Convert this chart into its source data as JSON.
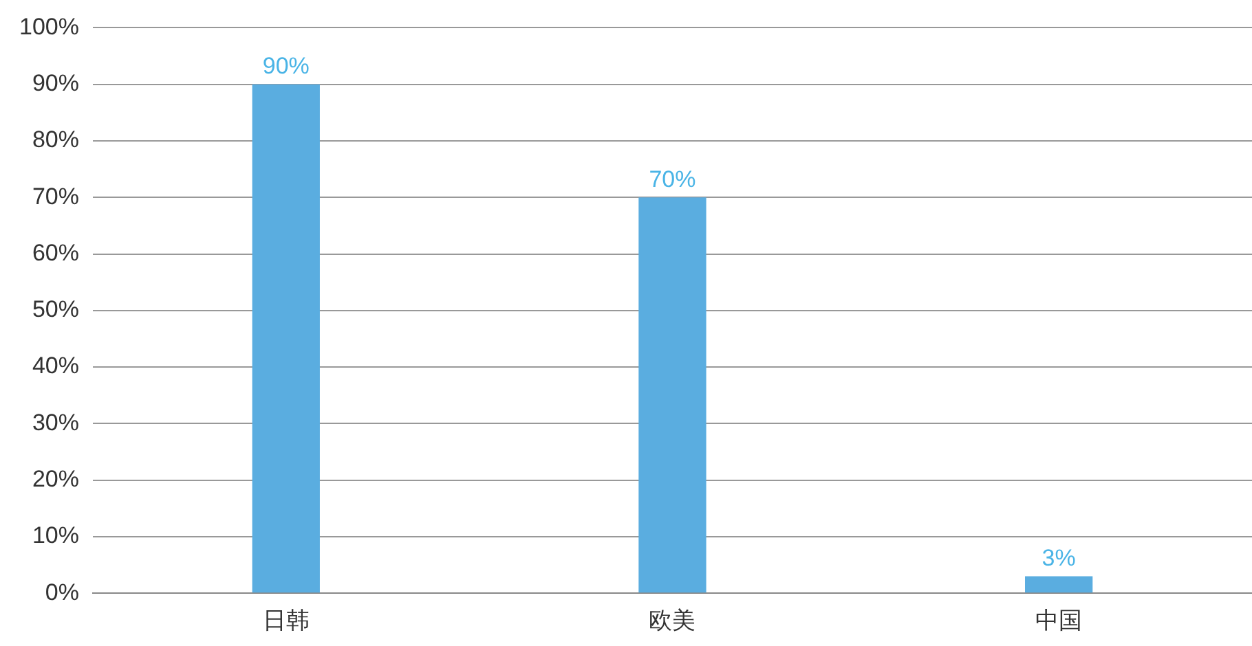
{
  "chart_data": {
    "type": "bar",
    "categories": [
      "日韩",
      "欧美",
      "中国"
    ],
    "values": [
      90,
      70,
      3
    ],
    "value_labels": [
      "90%",
      "70%",
      "3%"
    ],
    "color": "#5aade0",
    "ylim": [
      0,
      100
    ],
    "yticks": [
      {
        "value": 0,
        "label": "0%"
      },
      {
        "value": 10,
        "label": "10%"
      },
      {
        "value": 20,
        "label": "20%"
      },
      {
        "value": 30,
        "label": "30%"
      },
      {
        "value": 40,
        "label": "40%"
      },
      {
        "value": 50,
        "label": "50%"
      },
      {
        "value": 60,
        "label": "60%"
      },
      {
        "value": 70,
        "label": "70%"
      },
      {
        "value": 80,
        "label": "80%"
      },
      {
        "value": 90,
        "label": "90%"
      },
      {
        "value": 100,
        "label": "100%"
      }
    ],
    "grid": "y"
  }
}
